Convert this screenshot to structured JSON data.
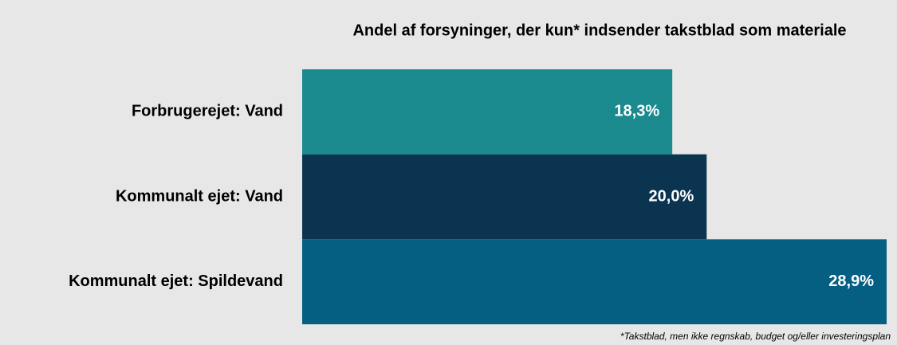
{
  "chart_data": {
    "type": "barh",
    "title": "Andel af forsyninger, der kun* indsender takstblad som materiale",
    "categories": [
      "Forbrugerejet: Vand",
      "Kommunalt ejet: Vand",
      "Kommunalt ejet: Spildevand"
    ],
    "values": [
      18.3,
      20.0,
      28.9
    ],
    "value_labels": [
      "18,3%",
      "20,0%",
      "28,9%"
    ],
    "colors": [
      "#1a8a8e",
      "#0b3451",
      "#045f82"
    ],
    "xlim": [
      0,
      28.9
    ],
    "footnote": "*Takstblad, men ikke regnskab, budget og/eller investeringsplan"
  }
}
